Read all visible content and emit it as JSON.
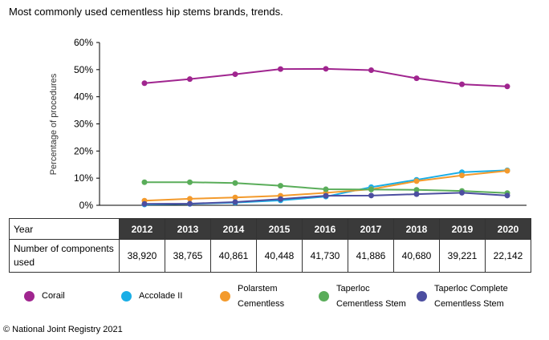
{
  "title": "Most commonly used cementless hip stems brands, trends.",
  "footer": "© National Joint Registry 2021",
  "table": {
    "year_header": "Year",
    "count_header": "Number of components used",
    "years": [
      "2012",
      "2013",
      "2014",
      "2015",
      "2016",
      "2017",
      "2018",
      "2019",
      "2020"
    ],
    "counts": [
      "38,920",
      "38,765",
      "40,861",
      "40,448",
      "41,730",
      "41,886",
      "40,680",
      "39,221",
      "22,142"
    ]
  },
  "chart_data": {
    "type": "line",
    "title": "Most commonly used cementless hip stems brands, trends.",
    "xlabel": "",
    "ylabel": "Percentage of procedures",
    "x": [
      2012,
      2013,
      2014,
      2015,
      2016,
      2017,
      2018,
      2019,
      2020
    ],
    "ylim": [
      0,
      60
    ],
    "yticks": [
      "0%",
      "10%",
      "20%",
      "30%",
      "40%",
      "50%",
      "60%"
    ],
    "grid": false,
    "legend_position": "bottom",
    "series": [
      {
        "name": "Corail",
        "color": "#a0258f",
        "values": [
          45.0,
          46.5,
          48.3,
          50.2,
          50.3,
          49.8,
          46.8,
          44.6,
          43.8
        ]
      },
      {
        "name": "Accolade II",
        "color": "#1aaee6",
        "values": [
          0.3,
          0.5,
          1.0,
          1.8,
          3.2,
          6.7,
          9.4,
          12.2,
          12.9
        ]
      },
      {
        "name": "Polarstem Cementless",
        "color": "#f39a2c",
        "values": [
          1.7,
          2.4,
          2.9,
          3.5,
          4.6,
          5.9,
          8.9,
          11.0,
          12.7
        ]
      },
      {
        "name": "Taperloc Cementless Stem",
        "color": "#5aad5a",
        "values": [
          8.5,
          8.5,
          8.2,
          7.2,
          5.9,
          5.8,
          5.7,
          5.3,
          4.5
        ]
      },
      {
        "name": "Taperloc Complete Cementless Stem",
        "color": "#4c4ea0",
        "values": [
          0.5,
          0.6,
          1.2,
          2.3,
          3.5,
          3.6,
          4.1,
          4.6,
          3.6
        ]
      }
    ],
    "legend_labels": [
      [
        "Corail"
      ],
      [
        "Accolade II"
      ],
      [
        "Polarstem",
        "Cementless"
      ],
      [
        "Taperloc",
        "Cementless Stem"
      ],
      [
        "Taperloc Complete",
        "Cementless Stem"
      ]
    ]
  }
}
